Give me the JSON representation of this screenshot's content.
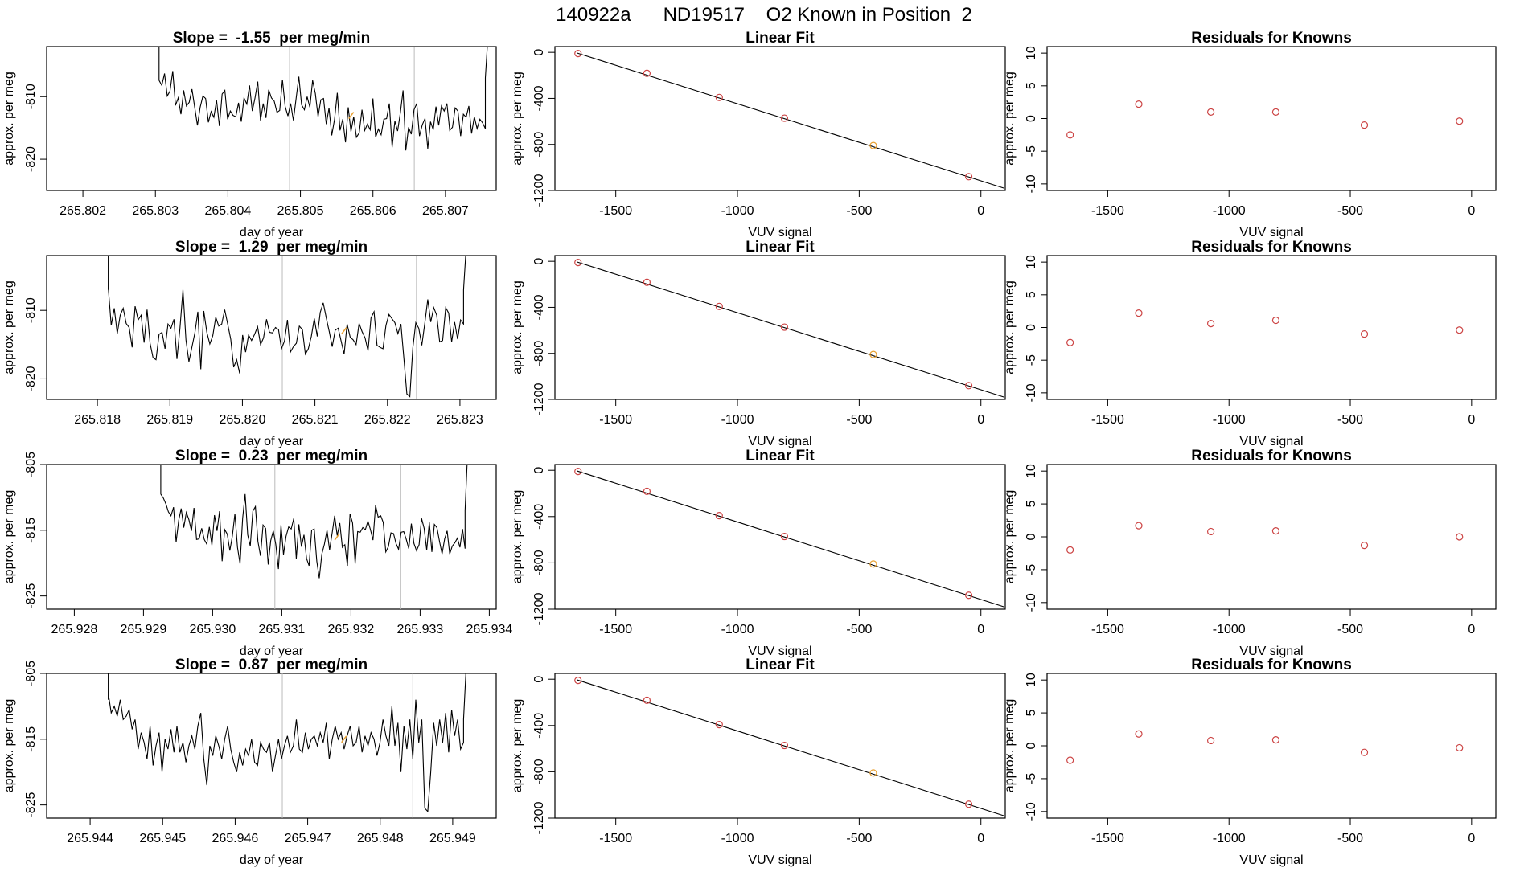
{
  "main_title": "140922a      ND19517    O2 Known in Position  2",
  "colors": {
    "trace": "#000000",
    "points": "#cc4444",
    "highlight": "#e8a030",
    "vline": "#bbbbbb",
    "fit_line": "#000000"
  },
  "chart_data": [
    {
      "type": "line",
      "panel": "time-series",
      "row": 1,
      "title": "Slope =  -1.55  per meg/min",
      "xlabel": "day of year",
      "ylabel": "approx. per meg",
      "xlim": [
        265.8015,
        265.8077
      ],
      "ylim": [
        -825,
        -802
      ],
      "x_ticks": [
        "265.802",
        "265.803",
        "265.804",
        "265.805",
        "265.806",
        "265.807"
      ],
      "y_ticks": [
        "-810",
        "-820"
      ],
      "x_start": 265.80305,
      "x_end": 265.80755,
      "lead_in": [
        -800,
        -807
      ],
      "lead_out": [
        -807,
        -800
      ],
      "vlines": [
        265.80485,
        265.80657
      ],
      "marker": {
        "x": 265.8057,
        "y": -813
      },
      "values": [
        -807.4,
        -808.2,
        -806.3,
        -809.9,
        -809.1,
        -805.9,
        -811.4,
        -810.2,
        -812.8,
        -809.0,
        -811.5,
        -810.9,
        -808.8,
        -811.7,
        -814.6,
        -811.7,
        -809.9,
        -810.3,
        -814.1,
        -812.4,
        -813.3,
        -810.6,
        -814.7,
        -809.6,
        -809.0,
        -813.6,
        -812.3,
        -813.0,
        -813.2,
        -811.0,
        -814.0,
        -810.2,
        -811.2,
        -808.2,
        -812.3,
        -810.2,
        -807.6,
        -813.8,
        -811.1,
        -813.4,
        -808.9,
        -810.2,
        -810.7,
        -812.5,
        -812.2,
        -807.3,
        -811.6,
        -813.1,
        -811.1,
        -813.8,
        -810.3,
        -806.8,
        -811.3,
        -812.1,
        -810.0,
        -811.7,
        -807.4,
        -809.5,
        -813.2,
        -810.5,
        -810.3,
        -814.4,
        -811.8,
        -816.2,
        -813.6,
        -809.4,
        -815.4,
        -813.6,
        -817.3,
        -811.7,
        -815.6,
        -813.2,
        -816.5,
        -815.8,
        -812.1,
        -815.4,
        -814.4,
        -815.3,
        -810.3,
        -816.5,
        -815.2,
        -816.1,
        -813.6,
        -813.5,
        -811.1,
        -818.1,
        -813.9,
        -815.5,
        -812.6,
        -809.0,
        -818.6,
        -814.9,
        -816.0,
        -812.1,
        -811.1,
        -816.3,
        -814.5,
        -813.5,
        -818.3,
        -814.0,
        -815.3,
        -811.6,
        -814.6,
        -811.5,
        -812.3,
        -811.1,
        -815.4,
        -814.9,
        -811.8,
        -812.3,
        -816.3,
        -812.8,
        -813.3,
        -811.5,
        -815.9,
        -813.2,
        -815.1,
        -813.6,
        -814.2,
        -815.1
      ]
    },
    {
      "type": "scatter",
      "panel": "linear-fit",
      "row": 1,
      "title": "Linear Fit",
      "xlabel": "VUV signal",
      "ylabel": "approx. per meg",
      "xlim": [
        -1750,
        100
      ],
      "ylim": [
        -1200,
        50
      ],
      "x_ticks": [
        -1500,
        -1000,
        -500,
        0
      ],
      "y_ticks": [
        0,
        -400,
        -800,
        -1200
      ],
      "x_tick_labels": [
        "-1500",
        "-1000",
        "-500",
        "0"
      ],
      "y_tick_labels": [
        "0",
        "-400",
        "-800",
        "-1200"
      ],
      "x": [
        -1655,
        -1372,
        -1075,
        -807,
        -442,
        -50
      ],
      "y": [
        -10,
        -182,
        -392,
        -572,
        -810,
        -1080
      ],
      "highlight_index": 4,
      "fit_x": [
        -1660,
        95
      ],
      "fit_y": [
        -5,
        -1180
      ]
    },
    {
      "type": "scatter",
      "panel": "residuals",
      "row": 1,
      "title": "Residuals for Knowns",
      "xlabel": "VUV signal",
      "ylabel": "approx. per meg",
      "xlim": [
        -1750,
        100
      ],
      "ylim": [
        -11,
        11
      ],
      "x_ticks": [
        -1500,
        -1000,
        -500,
        0
      ],
      "y_ticks": [
        10,
        5,
        0,
        -5,
        -10
      ],
      "x_tick_labels": [
        "-1500",
        "-1000",
        "-500",
        "0"
      ],
      "y_tick_labels": [
        "10",
        "5",
        "0",
        "-5",
        "-10"
      ],
      "x": [
        -1655,
        -1372,
        -1075,
        -807,
        -442,
        -50
      ],
      "y": [
        -2.5,
        2.2,
        1.0,
        1.0,
        -1.0,
        -0.4
      ]
    },
    {
      "type": "line",
      "panel": "time-series",
      "row": 2,
      "title": "Slope =  1.29  per meg/min",
      "xlabel": "day of year",
      "ylabel": "approx. per meg",
      "xlim": [
        265.8173,
        265.8235
      ],
      "ylim": [
        -823,
        -802
      ],
      "x_ticks": [
        "265.818",
        "265.819",
        "265.820",
        "265.821",
        "265.822",
        "265.823"
      ],
      "y_ticks": [
        "-810",
        "-820"
      ],
      "x_start": 265.81815,
      "x_end": 265.82305,
      "lead_in": [
        -800,
        -807
      ],
      "lead_out": [
        -807,
        -800
      ],
      "vlines": [
        265.82055,
        265.8224
      ],
      "marker": {
        "x": 265.8214,
        "y": -813
      },
      "values": [
        -806.6,
        -812.2,
        -809.7,
        -813.4,
        -810.7,
        -809.7,
        -811.9,
        -812.5,
        -815.4,
        -809.4,
        -811.4,
        -810.7,
        -814.7,
        -809.9,
        -814.8,
        -816.9,
        -817.2,
        -813.5,
        -813.2,
        -815.6,
        -812.0,
        -812.6,
        -811.3,
        -817.1,
        -812.7,
        -807.0,
        -814.3,
        -817.5,
        -815.4,
        -813.3,
        -810.2,
        -818.6,
        -810.1,
        -813.2,
        -814.9,
        -813.7,
        -811.0,
        -812.3,
        -812.0,
        -809.9,
        -812.0,
        -814.2,
        -818.3,
        -817.2,
        -819.2,
        -813.6,
        -816.1,
        -813.6,
        -814.4,
        -813.5,
        -812.4,
        -815.0,
        -814.0,
        -811.3,
        -813.2,
        -813.3,
        -812.5,
        -812.8,
        -815.6,
        -814.5,
        -811.4,
        -816.1,
        -815.3,
        -814.8,
        -812.3,
        -812.8,
        -816.4,
        -815.6,
        -813.8,
        -811.2,
        -813.8,
        -810.3,
        -808.9,
        -811.1,
        -813.1,
        -815.3,
        -812.9,
        -812.6,
        -814.5,
        -816.4,
        -812.0,
        -813.9,
        -814.3,
        -815.0,
        -811.9,
        -813.1,
        -814.0,
        -815.9,
        -811.1,
        -810.2,
        -815.1,
        -815.4,
        -815.6,
        -812.2,
        -810.6,
        -811.2,
        -811.8,
        -813.4,
        -812.0,
        -817.0,
        -822.2,
        -822.6,
        -815.5,
        -811.8,
        -812.6,
        -815.1,
        -811.9,
        -808.4,
        -811.7,
        -809.6,
        -810.7,
        -814.6,
        -814.4,
        -809.6,
        -810.4,
        -814.6,
        -811.7,
        -814.2,
        -811.4,
        -812.0
      ]
    },
    {
      "type": "scatter",
      "panel": "linear-fit",
      "row": 2,
      "title": "Linear Fit",
      "xlabel": "VUV signal",
      "ylabel": "approx. per meg",
      "xlim": [
        -1750,
        100
      ],
      "ylim": [
        -1200,
        50
      ],
      "x_ticks": [
        -1500,
        -1000,
        -500,
        0
      ],
      "y_ticks": [
        0,
        -400,
        -800,
        -1200
      ],
      "x_tick_labels": [
        "-1500",
        "-1000",
        "-500",
        "0"
      ],
      "y_tick_labels": [
        "0",
        "-400",
        "-800",
        "-1200"
      ],
      "x": [
        -1655,
        -1372,
        -1075,
        -807,
        -442,
        -50
      ],
      "y": [
        -10,
        -182,
        -392,
        -572,
        -810,
        -1080
      ],
      "highlight_index": 4,
      "fit_x": [
        -1660,
        95
      ],
      "fit_y": [
        -5,
        -1180
      ]
    },
    {
      "type": "scatter",
      "panel": "residuals",
      "row": 2,
      "title": "Residuals for Knowns",
      "xlabel": "VUV signal",
      "ylabel": "approx. per meg",
      "xlim": [
        -1750,
        100
      ],
      "ylim": [
        -11,
        11
      ],
      "x_ticks": [
        -1500,
        -1000,
        -500,
        0
      ],
      "y_ticks": [
        10,
        5,
        0,
        -5,
        -10
      ],
      "x_tick_labels": [
        "-1500",
        "-1000",
        "-500",
        "0"
      ],
      "y_tick_labels": [
        "10",
        "5",
        "0",
        "-5",
        "-10"
      ],
      "x": [
        -1655,
        -1372,
        -1075,
        -807,
        -442,
        -50
      ],
      "y": [
        -2.3,
        2.2,
        0.6,
        1.1,
        -1.0,
        -0.4
      ]
    },
    {
      "type": "line",
      "panel": "time-series",
      "row": 3,
      "title": "Slope =  0.23  per meg/min",
      "xlabel": "day of year",
      "ylabel": "approx. per meg",
      "xlim": [
        265.9276,
        265.9341
      ],
      "ylim": [
        -827,
        -805
      ],
      "x_ticks": [
        "265.928",
        "265.929",
        "265.930",
        "265.931",
        "265.932",
        "265.933",
        "265.934"
      ],
      "y_ticks": [
        "-805",
        "-815",
        "-825"
      ],
      "x_start": 265.92925,
      "x_end": 265.93365,
      "lead_in": [
        -803,
        -808
      ],
      "lead_out": [
        -812,
        -803
      ],
      "vlines": [
        265.9309,
        265.93272
      ],
      "marker": {
        "x": 265.9318,
        "y": -816
      },
      "values": [
        -809.5,
        -810.1,
        -811.0,
        -812.2,
        -812.8,
        -811.5,
        -816.8,
        -813.5,
        -811.7,
        -814.6,
        -812.3,
        -813.4,
        -815.1,
        -811.6,
        -816.4,
        -816.3,
        -814.7,
        -816.4,
        -817.1,
        -814.5,
        -817.3,
        -812.7,
        -815.1,
        -812.1,
        -819.7,
        -814.9,
        -815.6,
        -818.1,
        -815.9,
        -812.5,
        -817.6,
        -820.1,
        -813.2,
        -809.5,
        -815.7,
        -817.4,
        -812.1,
        -811.4,
        -816.7,
        -818.9,
        -814.2,
        -814.7,
        -820.2,
        -816.6,
        -815.1,
        -817.2,
        -820.9,
        -814.2,
        -818.7,
        -815.9,
        -814.5,
        -814.8,
        -813.2,
        -819.3,
        -814.1,
        -817.5,
        -815.7,
        -819.3,
        -820.4,
        -815.0,
        -814.8,
        -819.7,
        -822.3,
        -818.6,
        -817.1,
        -815.0,
        -818.0,
        -815.5,
        -812.8,
        -815.8,
        -813.9,
        -817.6,
        -817.2,
        -820.4,
        -812.5,
        -813.9,
        -820.1,
        -815.2,
        -815.3,
        -814.6,
        -814.9,
        -813.6,
        -814.9,
        -816.5,
        -811.2,
        -813.0,
        -812.8,
        -813.8,
        -818.3,
        -817.5,
        -815.4,
        -815.5,
        -817.0,
        -817.9,
        -815.3,
        -815.2,
        -816.4,
        -817.8,
        -814.0,
        -817.0,
        -818.1,
        -817.2,
        -813.2,
        -814.7,
        -818.0,
        -813.8,
        -818.3,
        -814.1,
        -814.6,
        -816.7,
        -818.6,
        -816.3,
        -815.1,
        -818.6,
        -817.4,
        -816.9,
        -816.2,
        -817.6,
        -814.8,
        -817.8
      ]
    },
    {
      "type": "scatter",
      "panel": "linear-fit",
      "row": 3,
      "title": "Linear Fit",
      "xlabel": "VUV signal",
      "ylabel": "approx. per meg",
      "xlim": [
        -1750,
        100
      ],
      "ylim": [
        -1200,
        50
      ],
      "x_ticks": [
        -1500,
        -1000,
        -500,
        0
      ],
      "y_ticks": [
        0,
        -400,
        -800,
        -1200
      ],
      "x_tick_labels": [
        "-1500",
        "-1000",
        "-500",
        "0"
      ],
      "y_tick_labels": [
        "0",
        "-400",
        "-800",
        "-1200"
      ],
      "x": [
        -1655,
        -1372,
        -1075,
        -807,
        -442,
        -50
      ],
      "y": [
        -10,
        -182,
        -392,
        -572,
        -810,
        -1080
      ],
      "highlight_index": 4,
      "fit_x": [
        -1660,
        95
      ],
      "fit_y": [
        -5,
        -1180
      ]
    },
    {
      "type": "scatter",
      "panel": "residuals",
      "row": 3,
      "title": "Residuals for Knowns",
      "xlabel": "VUV signal",
      "ylabel": "approx. per meg",
      "xlim": [
        -1750,
        100
      ],
      "ylim": [
        -11,
        11
      ],
      "x_ticks": [
        -1500,
        -1000,
        -500,
        0
      ],
      "y_ticks": [
        10,
        5,
        0,
        -5,
        -10
      ],
      "x_tick_labels": [
        "-1500",
        "-1000",
        "-500",
        "0"
      ],
      "y_tick_labels": [
        "10",
        "5",
        "0",
        "-5",
        "-10"
      ],
      "x": [
        -1655,
        -1372,
        -1075,
        -807,
        -442,
        -50
      ],
      "y": [
        -2.0,
        1.7,
        0.8,
        0.9,
        -1.3,
        0.0
      ]
    },
    {
      "type": "line",
      "panel": "time-series",
      "row": 4,
      "title": "Slope =  0.87  per meg/min",
      "xlabel": "day of year",
      "ylabel": "approx. per meg",
      "xlim": [
        265.9434,
        265.9496
      ],
      "ylim": [
        -827,
        -805
      ],
      "x_ticks": [
        "265.944",
        "265.945",
        "265.946",
        "265.947",
        "265.948",
        "265.949"
      ],
      "y_ticks": [
        "-805",
        "-815",
        "-825"
      ],
      "x_start": 265.94425,
      "x_end": 265.94915,
      "lead_in": [
        -803,
        -809
      ],
      "lead_out": [
        -812,
        -803
      ],
      "vlines": [
        265.94665,
        265.94845
      ],
      "marker": {
        "x": 265.9475,
        "y": -815
      },
      "values": [
        -808.0,
        -811.0,
        -810.0,
        -811.5,
        -809.0,
        -812.0,
        -811.5,
        -810.5,
        -813.5,
        -812.0,
        -816.5,
        -814.0,
        -815.5,
        -818.0,
        -813.0,
        -819.0,
        -816.0,
        -814.0,
        -820.0,
        -815.0,
        -816.5,
        -813.5,
        -817.0,
        -813.0,
        -817.0,
        -815.5,
        -818.5,
        -816.0,
        -814.5,
        -816.5,
        -813.0,
        -811.0,
        -818.0,
        -822.0,
        -816.0,
        -817.5,
        -814.5,
        -816.0,
        -818.0,
        -815.0,
        -813.0,
        -816.5,
        -818.5,
        -820.0,
        -817.0,
        -819.0,
        -816.5,
        -817.5,
        -815.0,
        -818.5,
        -819.0,
        -815.5,
        -816.5,
        -817.0,
        -815.5,
        -820.0,
        -817.5,
        -815.0,
        -818.0,
        -816.0,
        -814.5,
        -817.0,
        -816.0,
        -812.0,
        -816.5,
        -817.0,
        -814.0,
        -816.5,
        -815.0,
        -814.5,
        -816.0,
        -814.0,
        -815.5,
        -812.5,
        -818.0,
        -815.0,
        -813.0,
        -815.0,
        -814.0,
        -816.5,
        -814.5,
        -813.0,
        -816.0,
        -815.5,
        -813.0,
        -817.0,
        -814.5,
        -816.0,
        -814.0,
        -815.0,
        -817.5,
        -815.5,
        -812.0,
        -814.5,
        -816.0,
        -810.0,
        -816.0,
        -812.5,
        -820.0,
        -813.0,
        -816.5,
        -812.0,
        -818.0,
        -809.0,
        -815.5,
        -812.0,
        -825.5,
        -826.0,
        -820.0,
        -812.5,
        -816.0,
        -812.0,
        -815.5,
        -811.0,
        -817.0,
        -810.5,
        -814.5,
        -812.0,
        -816.5,
        -815.5
      ]
    },
    {
      "type": "scatter",
      "panel": "linear-fit",
      "row": 4,
      "title": "Linear Fit",
      "xlabel": "VUV signal",
      "ylabel": "approx. per meg",
      "xlim": [
        -1750,
        100
      ],
      "ylim": [
        -1200,
        50
      ],
      "x_ticks": [
        -1500,
        -1000,
        -500,
        0
      ],
      "y_ticks": [
        0,
        -400,
        -800,
        -1200
      ],
      "x_tick_labels": [
        "-1500",
        "-1000",
        "-500",
        "0"
      ],
      "y_tick_labels": [
        "0",
        "-400",
        "-800",
        "-1200"
      ],
      "x": [
        -1655,
        -1372,
        -1075,
        -807,
        -442,
        -50
      ],
      "y": [
        -10,
        -182,
        -392,
        -572,
        -810,
        -1080
      ],
      "highlight_index": 4,
      "fit_x": [
        -1660,
        95
      ],
      "fit_y": [
        -5,
        -1180
      ]
    },
    {
      "type": "scatter",
      "panel": "residuals",
      "row": 4,
      "title": "Residuals for Knowns",
      "xlabel": "VUV signal",
      "ylabel": "approx. per meg",
      "xlim": [
        -1750,
        100
      ],
      "ylim": [
        -11,
        11
      ],
      "x_ticks": [
        -1500,
        -1000,
        -500,
        0
      ],
      "y_ticks": [
        10,
        5,
        0,
        -5,
        -10
      ],
      "x_tick_labels": [
        "-1500",
        "-1000",
        "-500",
        "0"
      ],
      "y_tick_labels": [
        "10",
        "5",
        "0",
        "-5",
        "-10"
      ],
      "x": [
        -1655,
        -1372,
        -1075,
        -807,
        -442,
        -50
      ],
      "y": [
        -2.2,
        1.8,
        0.8,
        0.9,
        -1.0,
        -0.3
      ]
    }
  ]
}
